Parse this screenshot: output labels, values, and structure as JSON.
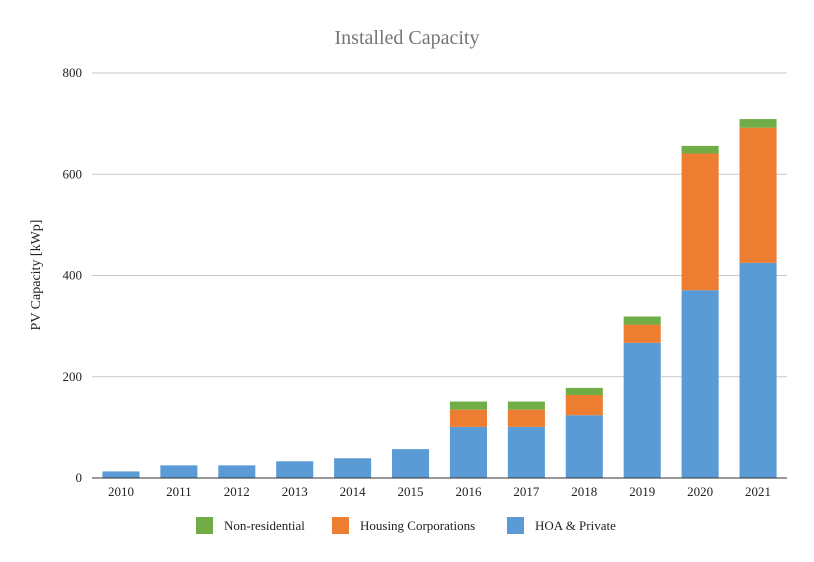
{
  "chart_data": {
    "type": "bar",
    "stacked": true,
    "title": "Installed Capacity",
    "xlabel": "",
    "ylabel": "PV Capacity [kWp]",
    "ylim": [
      0,
      800
    ],
    "yticks": [
      0,
      200,
      400,
      600,
      800
    ],
    "grid": true,
    "legend_position": "bottom",
    "categories": [
      "2010",
      "2011",
      "2012",
      "2013",
      "2014",
      "2015",
      "2016",
      "2017",
      "2018",
      "2019",
      "2020",
      "2021"
    ],
    "series": [
      {
        "name": "HOA & Private",
        "color": "#5b9bd5",
        "values": [
          13,
          25,
          25,
          33,
          39,
          57,
          101,
          101,
          124,
          267,
          371,
          425
        ]
      },
      {
        "name": "Housing Corporations",
        "color": "#ed7d31",
        "values": [
          0,
          0,
          0,
          0,
          0,
          0,
          34,
          34,
          40,
          36,
          270,
          267
        ]
      },
      {
        "name": "Non-residential",
        "color": "#70ad47",
        "values": [
          0,
          0,
          0,
          0,
          0,
          0,
          16,
          16,
          14,
          16,
          15,
          17
        ]
      }
    ],
    "legend_order": [
      "Non-residential",
      "Housing Corporations",
      "HOA & Private"
    ]
  }
}
